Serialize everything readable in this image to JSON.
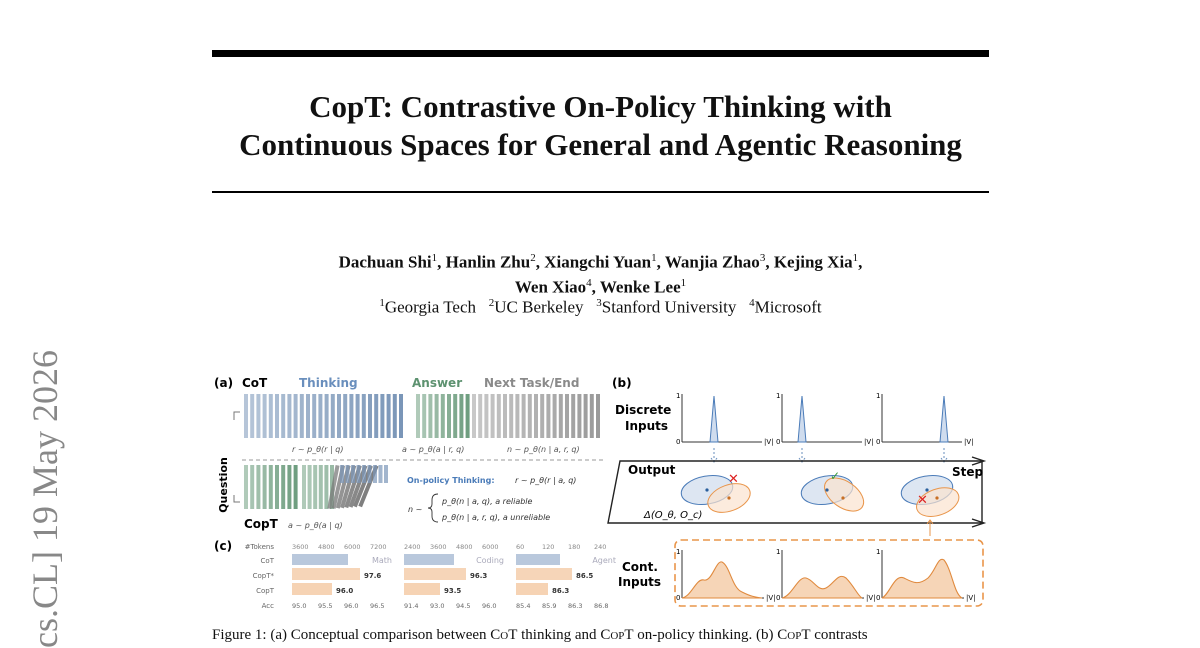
{
  "sidebar": {
    "arxiv_id": "cs.CL]  19 May 2026"
  },
  "title": {
    "line1": "CopT: Contrastive On-Policy Thinking with",
    "line2": "Continuous Spaces for General and Agentic Reasoning"
  },
  "authors": [
    {
      "name": "Dachuan Shi",
      "aff": "1"
    },
    {
      "name": "Hanlin Zhu",
      "aff": "2"
    },
    {
      "name": "Xiangchi Yuan",
      "aff": "1"
    },
    {
      "name": "Wanjia Zhao",
      "aff": "3"
    },
    {
      "name": "Kejing Xia",
      "aff": "1"
    },
    {
      "name": "Wen Xiao",
      "aff": "4"
    },
    {
      "name": "Wenke Lee",
      "aff": "1"
    }
  ],
  "affiliations": [
    {
      "num": "1",
      "name": "Georgia Tech"
    },
    {
      "num": "2",
      "name": "UC Berkeley"
    },
    {
      "num": "3",
      "name": "Stanford University"
    },
    {
      "num": "4",
      "name": "Microsoft"
    }
  ],
  "figure": {
    "panel_a": {
      "label": "(a)",
      "cot": "CoT",
      "thinking": "Thinking",
      "answer": "Answer",
      "next": "Next Task/End",
      "question": "Question",
      "copt": "CopT",
      "eq_think": "r ~ p_θ(r | q)",
      "eq_answer": "a ~ p_θ(a | r, q)",
      "eq_next": "n ~ p_θ(n | a, r, q)",
      "onpolicy_label": "On-policy Thinking:",
      "onpolicy_eq": "r ~ p_θ(r | a, q)",
      "case1": "p_θ(n | a, q),   a reliable",
      "case2": "p_θ(n | a, r, q), a unreliable",
      "copt_eq": "a ~ p_θ(a | q)",
      "n_symbol": "n ~"
    },
    "panel_b": {
      "label": "(b)",
      "discrete": "Discrete",
      "inputs": "Inputs",
      "output": "Output",
      "step": "Step",
      "delta": "Δ(O_θ, O_c)",
      "cont": "Cont.",
      "cont_inputs": "Inputs",
      "axis_v": "|V|",
      "axis_zero": "0",
      "axis_one": "1"
    },
    "panel_c": {
      "label": "(c)",
      "row_labels": [
        "#Tokens",
        "CoT",
        "CopT*",
        "CopT",
        "Acc"
      ],
      "groups": [
        "Math",
        "Coding",
        "Agent"
      ],
      "tokens": [
        "3600",
        "4800",
        "6000",
        "7200",
        "2400",
        "3600",
        "4800",
        "6000",
        "60",
        "120",
        "180",
        "240"
      ],
      "copt_star_vals": [
        "97.6",
        "96.3",
        "86.5"
      ],
      "copt_vals": [
        "96.0",
        "93.5",
        "86.3"
      ],
      "acc": [
        "95.0",
        "95.5",
        "96.0",
        "96.5",
        "91.4",
        "93.0",
        "94.5",
        "96.0",
        "85.4",
        "85.9",
        "86.3",
        "86.8"
      ]
    }
  },
  "caption": {
    "label": "Figure 1:",
    "text_a": "(a) Conceptual comparison between",
    "cot": "CoT",
    "text_b": "thinking and",
    "copt": "CopT",
    "text_c": "on-policy thinking. (b)",
    "copt2": "CopT",
    "text_d": "contrasts"
  },
  "colors": {
    "blue": "#7a96b8",
    "green": "#6f9e80",
    "gray": "#9a9a9a",
    "orange": "#e99a55"
  }
}
